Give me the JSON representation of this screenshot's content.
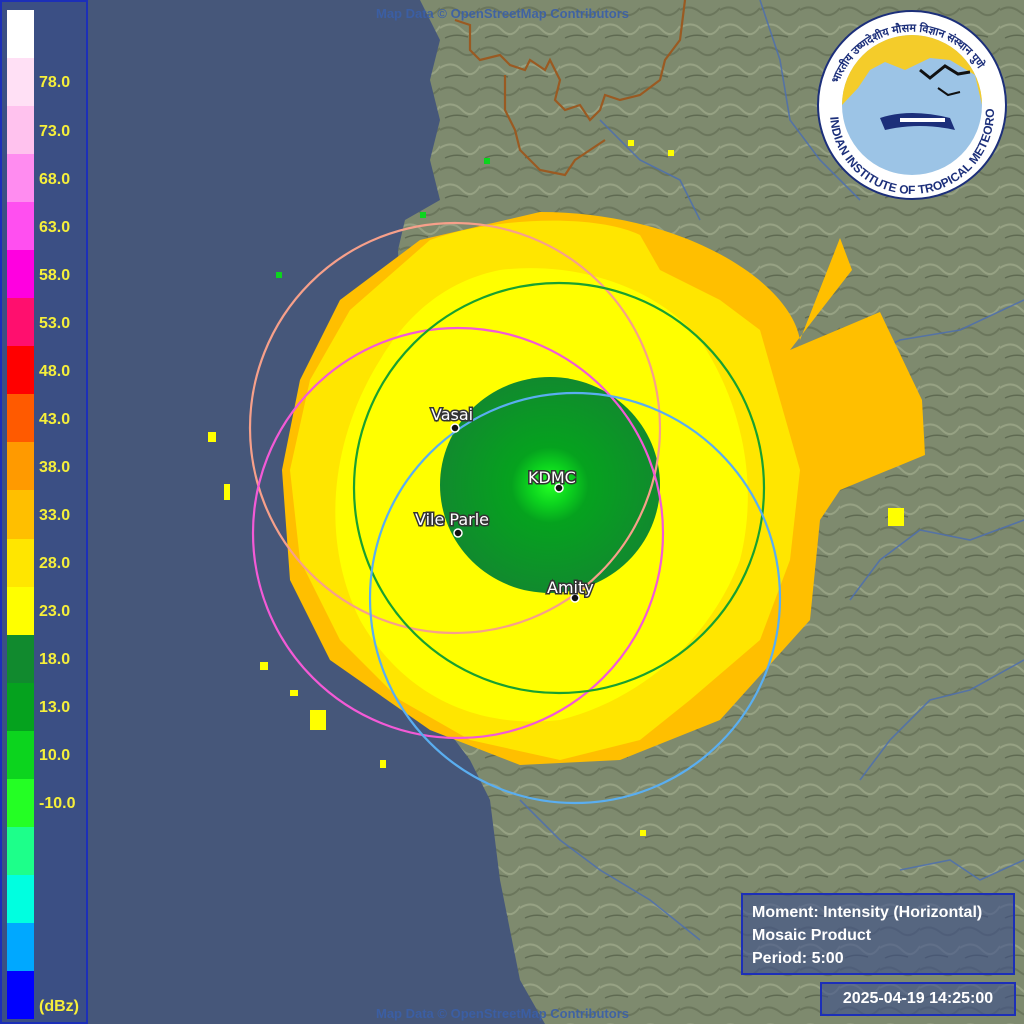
{
  "attribution": "Map Data © OpenStreetMap Contributors",
  "legend": {
    "unit": "(dBz)",
    "labels": [
      "78.0",
      "73.0",
      "68.0",
      "63.0",
      "58.0",
      "53.0",
      "48.0",
      "43.0",
      "38.0",
      "33.0",
      "28.0",
      "23.0",
      "18.0",
      "13.0",
      "10.0",
      "-10.0"
    ],
    "colors": [
      "#ffffff",
      "#ffe0f5",
      "#ffc2ee",
      "#ff8cf0",
      "#ff4ff0",
      "#ff00e0",
      "#ff0f6e",
      "#ff0000",
      "#ff5a00",
      "#ff9a00",
      "#ffbf00",
      "#ffe600",
      "#ffff00",
      "#118a2e",
      "#05a21e",
      "#0cd41e",
      "#24ff24",
      "#1dff8a",
      "#00ffe0",
      "#00a8ff",
      "#0000ff"
    ]
  },
  "sites": [
    {
      "name": "KDMC",
      "ring_color": "#18a030"
    },
    {
      "name": "Vasai",
      "ring_color": "#f7a08a"
    },
    {
      "name": "Vile Parle",
      "ring_color": "#f35ad6"
    },
    {
      "name": "Amity",
      "ring_color": "#5aaef0"
    }
  ],
  "info": {
    "moment": "Moment: Intensity (Horizontal)",
    "product": "Mosaic Product",
    "period": "Period: 5:00"
  },
  "timestamp": "2025-04-19 14:25:00",
  "logo": {
    "text": "INDIAN INSTITUTE OF TROPICAL METEOROLOGY PUNE",
    "hindi": "भारतीय उष्णदेशीय मौसम विज्ञान संस्थान पुणे",
    "icon": "iitm-logo-icon"
  }
}
